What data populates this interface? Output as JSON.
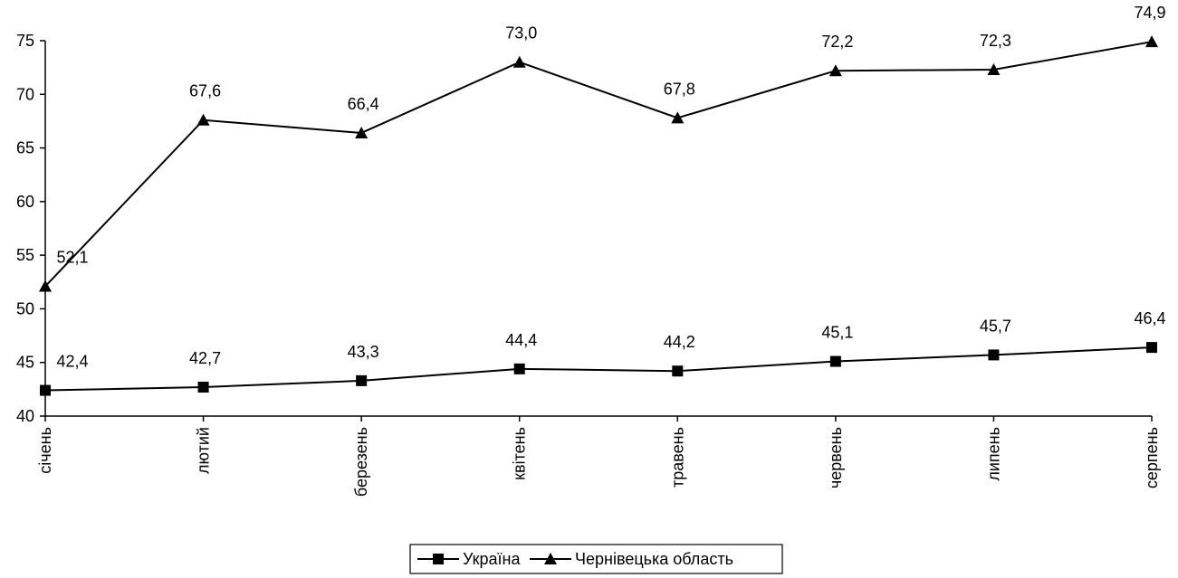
{
  "chart_data": {
    "type": "line",
    "categories": [
      "січень",
      "лютий",
      "березень",
      "квітень",
      "травень",
      "червень",
      "липень",
      "серпень"
    ],
    "series": [
      {
        "name": "Україна",
        "marker": "square",
        "values": [
          42.4,
          42.7,
          43.3,
          44.4,
          44.2,
          45.1,
          45.7,
          46.4
        ],
        "labels": [
          "42,4",
          "42,7",
          "43,3",
          "44,4",
          "44,2",
          "45,1",
          "45,7",
          "46,4"
        ]
      },
      {
        "name": "Чернівецька область",
        "marker": "triangle",
        "values": [
          52.1,
          67.6,
          66.4,
          73.0,
          67.8,
          72.2,
          72.3,
          74.9
        ],
        "labels": [
          "52,1",
          "67,6",
          "66,4",
          "73,0",
          "67,8",
          "72,2",
          "72,3",
          "74,9"
        ]
      }
    ],
    "ylim": [
      40,
      75
    ],
    "yticks": [
      40,
      45,
      50,
      55,
      60,
      65,
      70,
      75
    ],
    "xlabel": "",
    "ylabel": "",
    "title": "",
    "grid": false,
    "legend_position": "bottom",
    "line_color": "#000000"
  }
}
